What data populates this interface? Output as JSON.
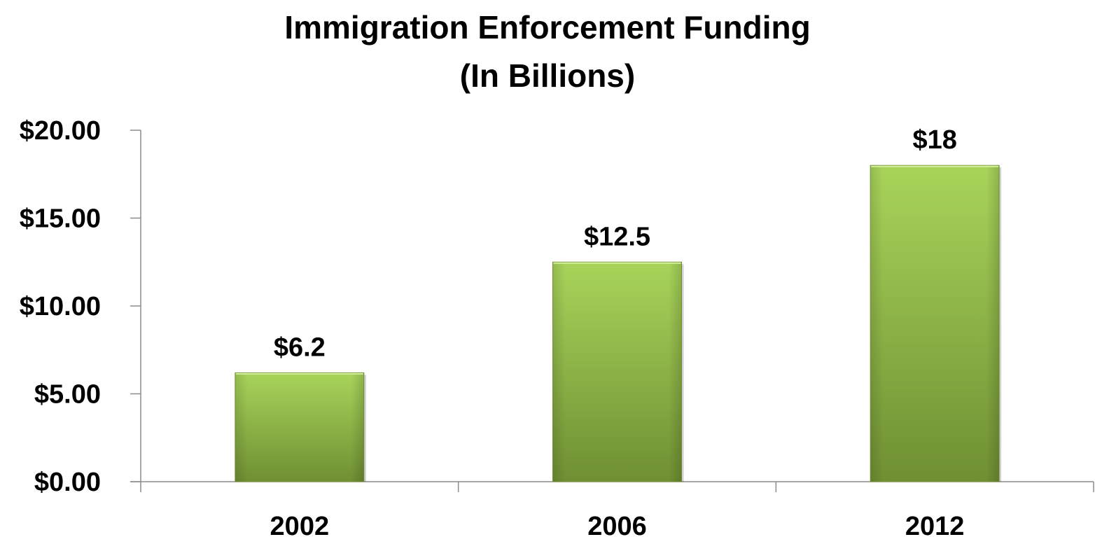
{
  "chart_data": {
    "type": "bar",
    "title": "Immigration Enforcement Funding",
    "subtitle": "(In Billions)",
    "categories": [
      "2002",
      "2006",
      "2012"
    ],
    "values": [
      6.2,
      12.5,
      18
    ],
    "data_labels": [
      "$6.2",
      "$12.5",
      "$18"
    ],
    "y_ticks": [
      0,
      5,
      10,
      15,
      20
    ],
    "y_tick_labels": [
      "$0.00",
      "$5.00",
      "$10.00",
      "$15.00",
      "$20.00"
    ],
    "ylim": [
      0,
      20
    ],
    "xlabel": "",
    "ylabel": "",
    "grid": false,
    "legend": "none",
    "bar_color_top": "#a8d45a",
    "bar_color_bottom": "#6f8f33"
  }
}
